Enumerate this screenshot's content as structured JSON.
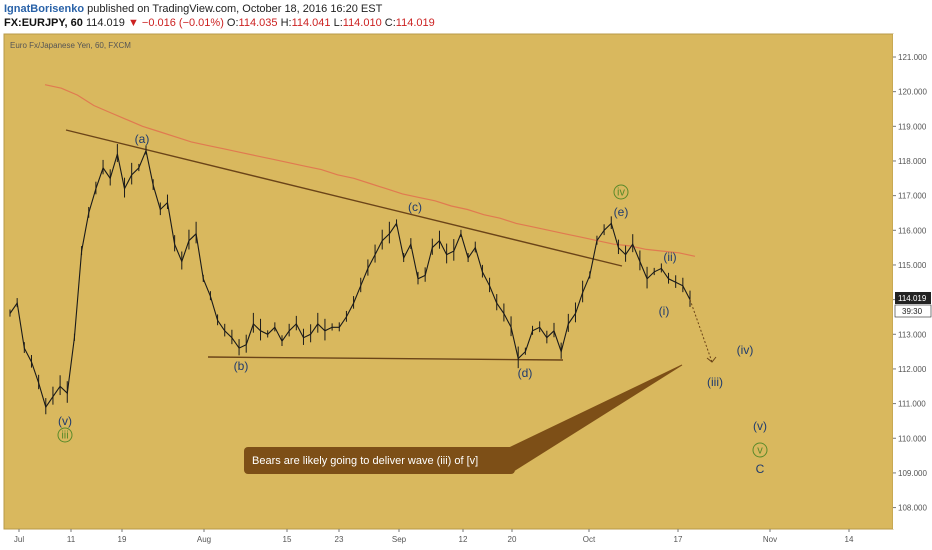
{
  "header": {
    "author": "IgnatBorisenko",
    "published": "published on TradingView.com, October 18, 2016 16:20 EST",
    "symbol_line": "FX:EURJPY, 60",
    "last": "114.019",
    "arrow": "▼",
    "change": "−0.016 (−0.01%)",
    "o_label": "O:",
    "o_val": "114.035",
    "h_label": "H:",
    "h_val": "114.041",
    "l_label": "L:",
    "l_val": "114.010",
    "c_label": "C:",
    "c_val": "114.019"
  },
  "legend": "Euro Fx/Japanese Yen, 60, FXCM",
  "price_badge": {
    "price": "114.019",
    "countdown": "39:30"
  },
  "annotation_text": "Bears are likely going to deliver wave (iii) of [v]",
  "colors": {
    "background": "#d9b85e",
    "candle": "#1a1a1a",
    "ma": "#e07a50",
    "trendline": "#6b4418",
    "callout": "#7d4f17",
    "wave_label": "#1f3b6e",
    "wave_green": "#5a8a2a"
  },
  "chart_data": {
    "type": "line",
    "title": "Euro Fx/Japanese Yen, 60, FXCM",
    "xlabel": "",
    "ylabel": "",
    "ylim": [
      107.5,
      121.5
    ],
    "x_ticks": [
      "Jul",
      "11",
      "19",
      "Aug",
      "15",
      "23",
      "Sep",
      "12",
      "20",
      "Oct",
      "17",
      "Nov",
      "14"
    ],
    "y_ticks": [
      "121.000",
      "120.000",
      "119.000",
      "118.000",
      "117.000",
      "116.000",
      "115.000",
      "114.000",
      "113.000",
      "112.000",
      "111.000",
      "110.000",
      "109.000",
      "108.000"
    ],
    "series": [
      {
        "values": [
          113.6,
          113.9,
          112.6,
          112.2,
          111.6,
          110.9,
          111.2,
          111.5,
          111.3,
          112.9,
          115.4,
          116.5,
          117.2,
          117.8,
          117.5,
          118.2,
          117.2,
          117.6,
          117.8,
          118.3,
          117.3,
          116.6,
          116.8,
          115.6,
          115.1,
          115.7,
          115.9,
          114.6,
          114.1,
          113.4,
          113.1,
          112.9,
          112.6,
          112.7,
          113.3,
          113.1,
          113.0,
          113.2,
          112.8,
          113.1,
          113.3,
          112.9,
          113.0,
          113.3,
          113.1,
          113.2,
          113.2,
          113.5,
          113.9,
          114.4,
          114.9,
          115.3,
          115.7,
          115.9,
          116.2,
          115.2,
          115.6,
          114.6,
          114.7,
          115.5,
          115.7,
          115.3,
          115.4,
          115.9,
          115.2,
          115.5,
          114.8,
          114.4,
          113.9,
          113.6,
          113.2,
          112.3,
          112.5,
          113.1,
          113.2,
          112.9,
          113.1,
          112.5,
          113.3,
          113.6,
          114.2,
          114.7,
          115.7,
          116.0,
          116.2,
          115.5,
          115.3,
          115.6,
          115.1,
          114.6,
          114.8,
          114.9,
          114.6,
          114.5,
          114.4,
          114.0
        ]
      },
      {
        "name": "",
        "values": [
          120.2,
          120.1,
          119.9,
          119.6,
          119.4,
          119.2,
          119.0,
          118.85,
          118.7,
          118.55,
          118.45,
          118.35,
          118.25,
          118.15,
          118.05,
          117.95,
          117.85,
          117.75,
          117.6,
          117.5,
          117.35,
          117.2,
          117.05,
          116.95,
          116.85,
          116.7,
          116.6,
          116.45,
          116.35,
          116.2,
          116.1,
          116.0,
          115.9,
          115.8,
          115.7,
          115.6,
          115.55,
          115.45,
          115.4,
          115.35,
          115.25
        ]
      }
    ],
    "trendlines": [
      {
        "from": [
          "Jul 9",
          118.8
        ],
        "to": [
          "Oct 11",
          115.0
        ]
      },
      {
        "from": [
          "Aug 2",
          112.3
        ],
        "to": [
          "Sep 27",
          112.2
        ]
      }
    ],
    "wave_labels": [
      "(a)",
      "(b)",
      "(c)",
      "(d)",
      "(e)",
      "(v)",
      "iii",
      "iv",
      "(i)",
      "(ii)",
      "(iii)",
      "(iv)",
      "(v)",
      "v",
      "C"
    ],
    "annotations": [
      "Bears are likely going to deliver wave (iii) of [v]"
    ]
  }
}
